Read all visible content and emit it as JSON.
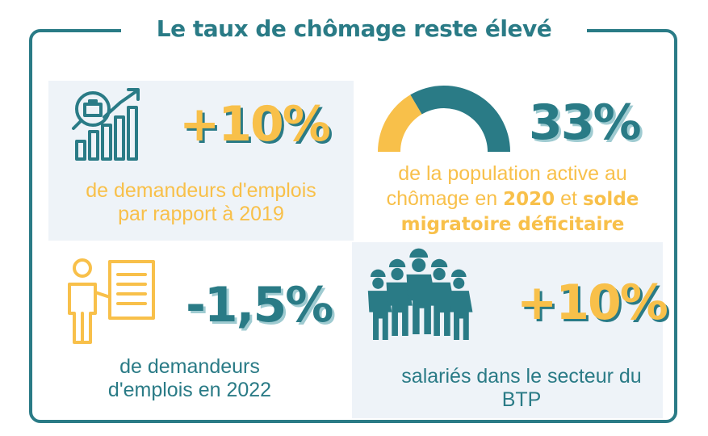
{
  "title": "Le taux de chômage reste élevé",
  "colors": {
    "teal": "#2a7b86",
    "yellow": "#f8c04a",
    "panel": "#eef3f8"
  },
  "stats": [
    {
      "value": "+10%",
      "caption_line1": "de demandeurs d'emplois",
      "caption_line2": "par rapport à 2019",
      "icon": "job-search-growth-icon"
    },
    {
      "value": "33%",
      "caption_line1": "de la population active au",
      "caption_line2_prefix": "chômage en",
      "caption_year": "2020",
      "caption_and": "et",
      "caption_strong1": "solde",
      "caption_strong2": "migratoire déficitaire",
      "icon": "half-donut-gauge-icon",
      "gauge_fraction": 0.33
    },
    {
      "value": "-1,5%",
      "caption_line1": "de demandeurs",
      "caption_line2": "d'emplois en 2022",
      "icon": "person-document-icon"
    },
    {
      "value": "+10%",
      "caption_line1": "salariés dans le secteur du",
      "caption_line2": "BTP",
      "icon": "construction-workers-icon"
    }
  ]
}
